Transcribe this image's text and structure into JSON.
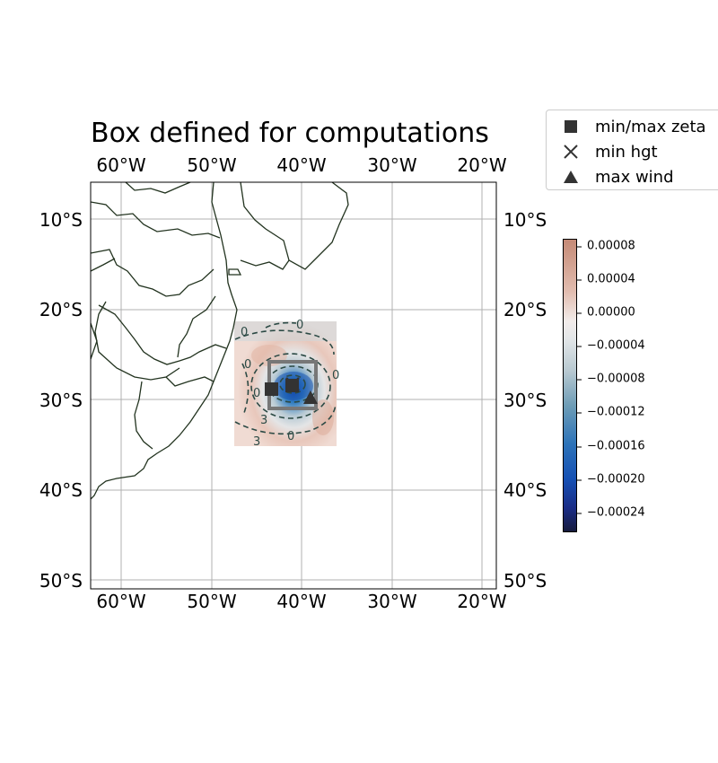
{
  "title": "Box defined for computations",
  "map": {
    "lon_range": [
      -63.5,
      -16
    ],
    "lat_range": [
      -51,
      -6
    ],
    "gridlines": true,
    "lon_tick_labels": [
      "60°W",
      "50°W",
      "40°W",
      "30°W",
      "20°W"
    ],
    "lat_tick_labels": [
      "10°S",
      "20°S",
      "30°S",
      "40°S",
      "50°S"
    ],
    "field_extent": {
      "lon": [
        -47.5,
        -36.2
      ],
      "lat": [
        -35,
        -21.3
      ]
    },
    "box_extent": {
      "lon": [
        -43.8,
        -38.6
      ],
      "lat": [
        -31,
        -25.8
      ]
    },
    "markers": {
      "min_max_zeta": {
        "lon": -43.3,
        "lat": -28.8
      },
      "min_hgt": {
        "lon": -41,
        "lat": -28.3
      },
      "max_wind": {
        "lon": -38.9,
        "lat": -29.6
      }
    },
    "contour_labels": [
      "0",
      "0",
      "0",
      "3",
      "3",
      "0",
      "0",
      "0"
    ]
  },
  "legend": {
    "placement": "upper right, outside axes",
    "items": [
      {
        "label": "min/max zeta",
        "icon": "square-marker-icon"
      },
      {
        "label": "min hgt",
        "icon": "x-marker-icon"
      },
      {
        "label": "max wind",
        "icon": "triangle-marker-icon"
      }
    ]
  },
  "colorbar": {
    "colormap": "diverging brown-white-blue",
    "range": [
      -0.00026,
      8.5e-05
    ],
    "tick_labels": [
      "0.00008",
      "0.00004",
      "0.00000",
      "−0.00004",
      "−0.00008",
      "−0.00012",
      "−0.00016",
      "−0.00020",
      "−0.00024"
    ]
  },
  "colors": {
    "coastline": "#22331f",
    "grid": "#b0b0b0",
    "box": "#777777",
    "marker": "#333333",
    "contour": "#2c4a45"
  }
}
